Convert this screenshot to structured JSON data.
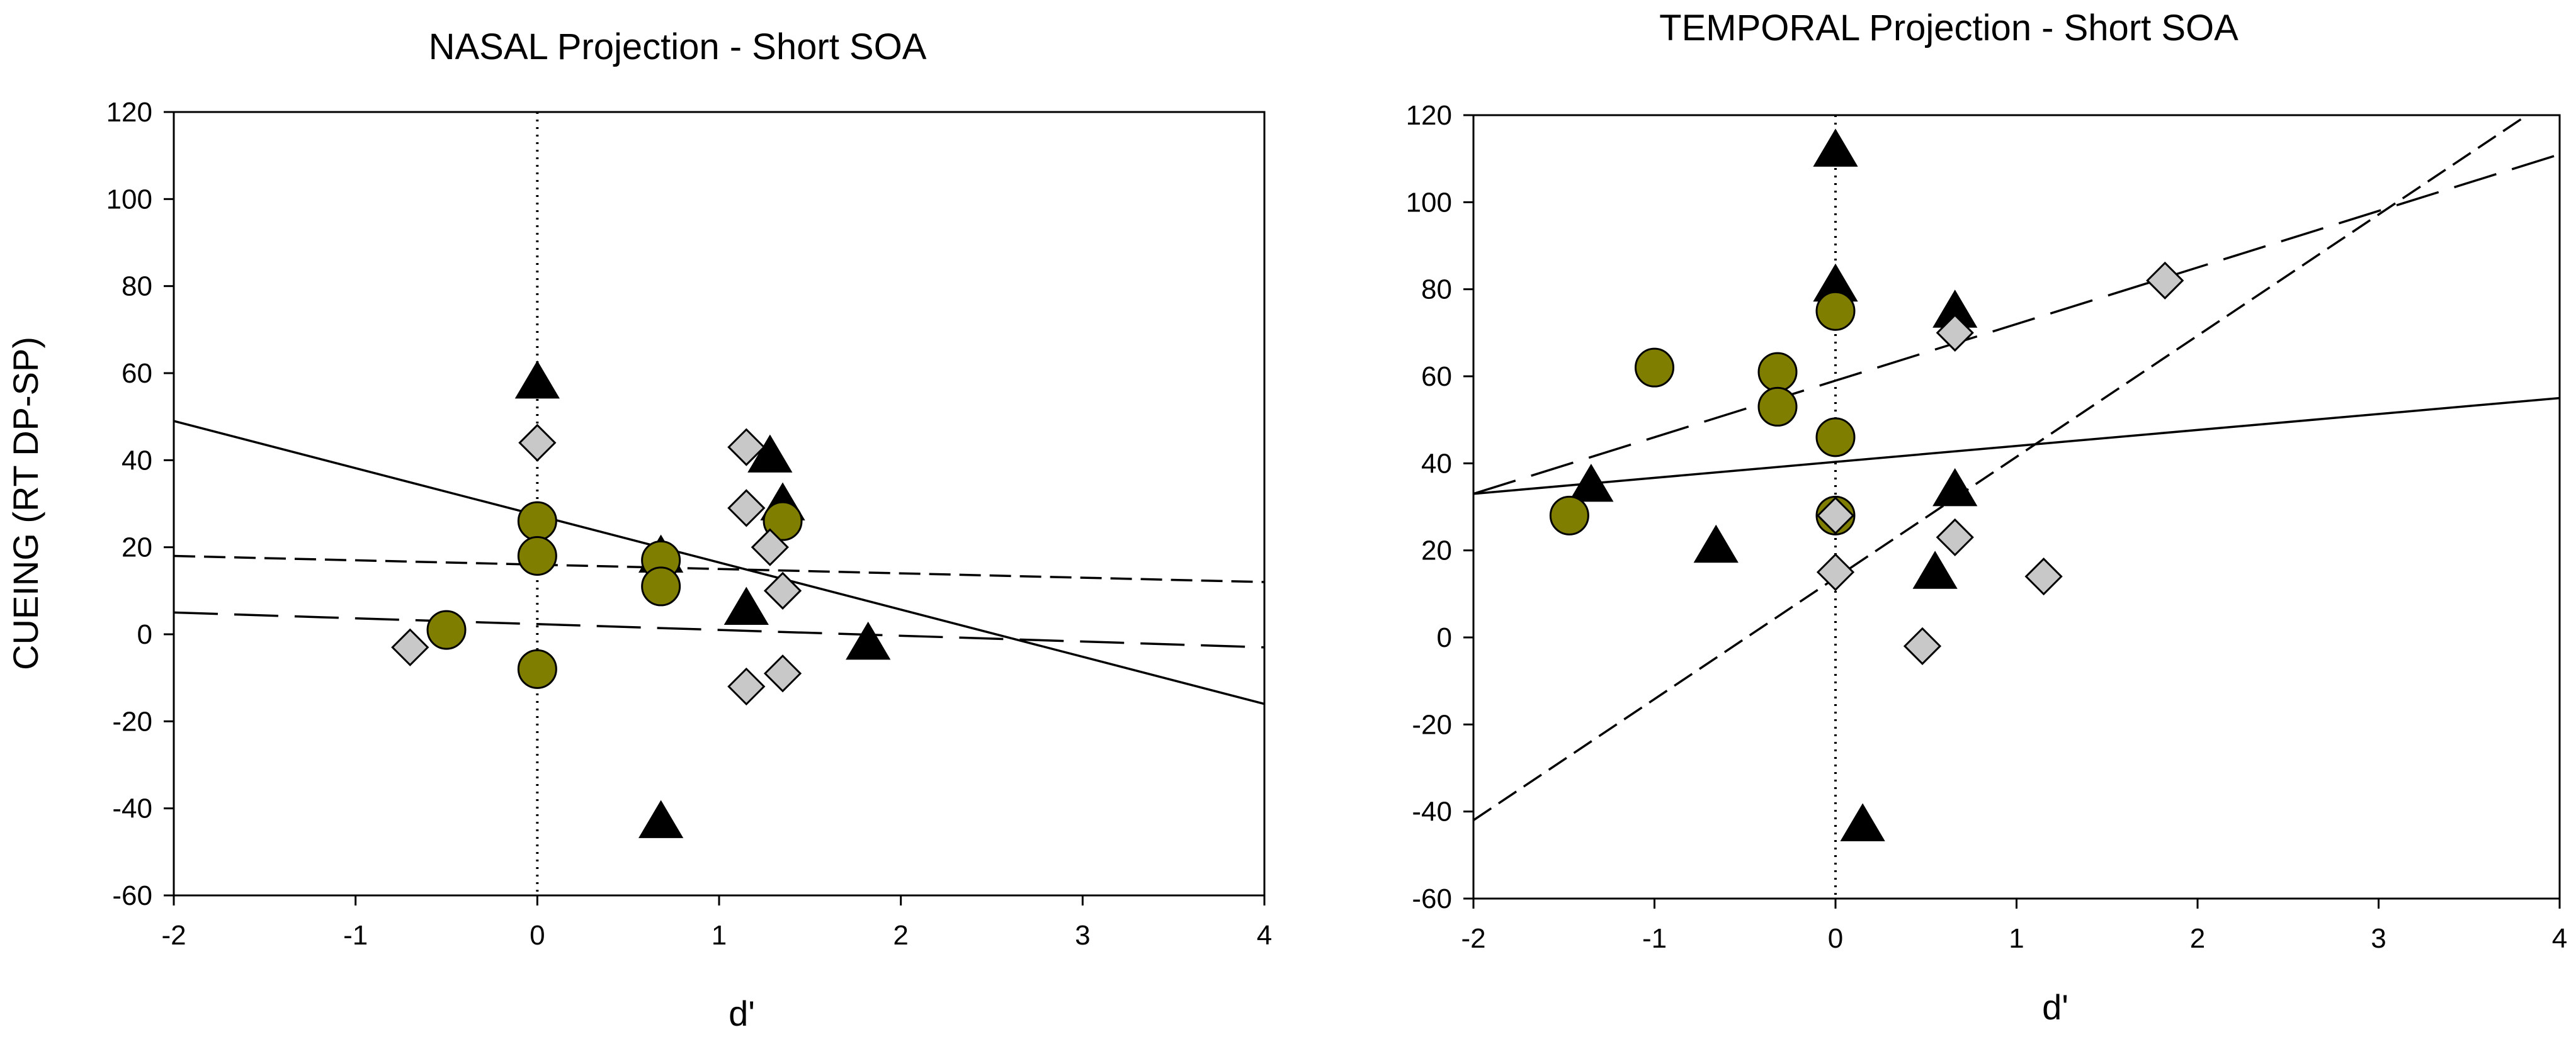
{
  "figure": {
    "y_axis_label": "CUEING (RT DP-SP)"
  },
  "chart_data": [
    {
      "type": "scatter",
      "title": "NASAL Projection - Short SOA",
      "xlabel": "d'",
      "ylabel": "CUEING (RT DP-SP)",
      "xlim": [
        -2,
        4
      ],
      "ylim": [
        -60,
        120
      ],
      "xticks": [
        "-2",
        "-1",
        "0",
        "1",
        "2",
        "3",
        "4"
      ],
      "yticks": [
        "-60",
        "-40",
        "-20",
        "0",
        "20",
        "40",
        "60",
        "80",
        "100",
        "120"
      ],
      "vertical_reference_x": 0,
      "series": [
        {
          "name": "triangles",
          "marker": "triangle",
          "color": "#000000",
          "points": [
            [
              0,
              58
            ],
            [
              0.68,
              -43
            ],
            [
              1.15,
              6
            ],
            [
              1.28,
              41
            ],
            [
              1.35,
              30
            ],
            [
              1.82,
              -2
            ],
            [
              0.68,
              18
            ]
          ]
        },
        {
          "name": "circles",
          "marker": "circle",
          "color": "#807E00",
          "points": [
            [
              -0.5,
              1
            ],
            [
              0,
              26
            ],
            [
              0,
              18
            ],
            [
              0,
              -8
            ],
            [
              0.68,
              17
            ],
            [
              0.68,
              11
            ],
            [
              1.35,
              26
            ]
          ]
        },
        {
          "name": "diamonds",
          "marker": "diamond",
          "color": "#C8C8C8",
          "points": [
            [
              -0.7,
              -3
            ],
            [
              0,
              44
            ],
            [
              1.15,
              43
            ],
            [
              1.15,
              29
            ],
            [
              1.28,
              20
            ],
            [
              1.35,
              10
            ],
            [
              1.15,
              -12
            ],
            [
              1.35,
              -9
            ]
          ]
        }
      ],
      "fit_lines": [
        {
          "name": "solid fit",
          "style": "solid",
          "x": [
            -2,
            4
          ],
          "y": [
            49,
            -16
          ]
        },
        {
          "name": "short-dash fit",
          "style": "short-dash",
          "x": [
            -2,
            4
          ],
          "y": [
            18,
            12
          ]
        },
        {
          "name": "long-dash fit",
          "style": "long-dash",
          "x": [
            -2,
            4
          ],
          "y": [
            5,
            -3
          ]
        }
      ]
    },
    {
      "type": "scatter",
      "title": "TEMPORAL Projection - Short SOA",
      "xlabel": "d'",
      "ylabel": "CUEING (RT DP-SP)",
      "xlim": [
        -2,
        4
      ],
      "ylim": [
        -60,
        120
      ],
      "xticks": [
        "-2",
        "-1",
        "0",
        "1",
        "2",
        "3",
        "4"
      ],
      "yticks": [
        "-60",
        "-40",
        "-20",
        "0",
        "20",
        "40",
        "60",
        "80",
        "100",
        "120"
      ],
      "vertical_reference_x": 0,
      "series": [
        {
          "name": "triangles",
          "marker": "triangle",
          "color": "#000000",
          "points": [
            [
              0,
              112
            ],
            [
              0,
              81
            ],
            [
              -1.35,
              35
            ],
            [
              -0.66,
              21
            ],
            [
              0.15,
              -43
            ],
            [
              0.55,
              15
            ],
            [
              0.66,
              34
            ],
            [
              0.66,
              75
            ]
          ]
        },
        {
          "name": "circles",
          "marker": "circle",
          "color": "#807E00",
          "points": [
            [
              -1.47,
              28
            ],
            [
              -1.0,
              62
            ],
            [
              -0.32,
              61
            ],
            [
              -0.32,
              53
            ],
            [
              0,
              75
            ],
            [
              0,
              46
            ],
            [
              0,
              28
            ]
          ]
        },
        {
          "name": "diamonds",
          "marker": "diamond",
          "color": "#C8C8C8",
          "points": [
            [
              0,
              28
            ],
            [
              0,
              15
            ],
            [
              0.66,
              70
            ],
            [
              0.66,
              23
            ],
            [
              0.48,
              -2
            ],
            [
              1.15,
              14
            ],
            [
              1.82,
              82
            ]
          ]
        }
      ],
      "fit_lines": [
        {
          "name": "solid fit",
          "style": "solid",
          "x": [
            -2,
            4
          ],
          "y": [
            33,
            55
          ]
        },
        {
          "name": "short-dash fit",
          "style": "short-dash",
          "x": [
            -2,
            4
          ],
          "y": [
            -42,
            125
          ]
        },
        {
          "name": "long-dash fit",
          "style": "long-dash",
          "x": [
            -2,
            4
          ],
          "y": [
            33,
            111
          ]
        }
      ]
    }
  ]
}
